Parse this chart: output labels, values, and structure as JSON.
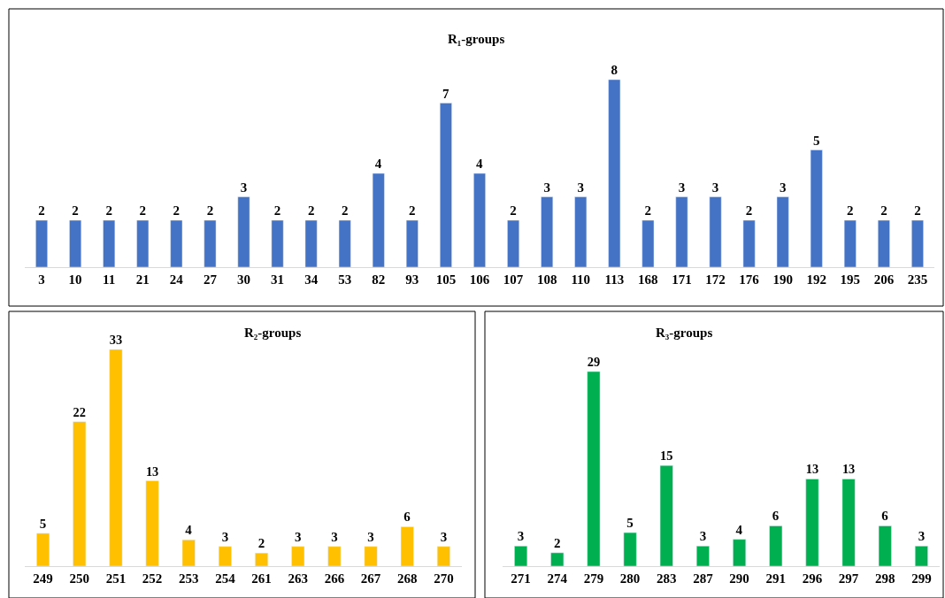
{
  "chart_data": [
    {
      "type": "bar",
      "title": "R₁-groups",
      "categories": [
        "3",
        "10",
        "11",
        "21",
        "24",
        "27",
        "30",
        "31",
        "34",
        "53",
        "82",
        "93",
        "105",
        "106",
        "107",
        "108",
        "110",
        "113",
        "168",
        "171",
        "172",
        "176",
        "190",
        "192",
        "195",
        "206",
        "235"
      ],
      "values": [
        2,
        2,
        2,
        2,
        2,
        2,
        3,
        2,
        2,
        2,
        4,
        2,
        7,
        4,
        2,
        3,
        3,
        8,
        2,
        3,
        3,
        2,
        3,
        5,
        2,
        2,
        2
      ],
      "color": "#4472c4",
      "data_labels": true
    },
    {
      "type": "bar",
      "title": "R₂-groups",
      "categories": [
        "249",
        "250",
        "251",
        "252",
        "253",
        "254",
        "261",
        "263",
        "266",
        "267",
        "268",
        "270"
      ],
      "values": [
        5,
        22,
        33,
        13,
        4,
        3,
        2,
        3,
        3,
        3,
        6,
        3
      ],
      "color": "#ffc000",
      "data_labels": true
    },
    {
      "type": "bar",
      "title": "R₃-groups",
      "categories": [
        "271",
        "274",
        "279",
        "280",
        "283",
        "287",
        "290",
        "291",
        "296",
        "297",
        "298",
        "299"
      ],
      "values": [
        3,
        2,
        29,
        5,
        15,
        3,
        4,
        6,
        13,
        13,
        6,
        3
      ],
      "color": "#00b050",
      "data_labels": true
    }
  ]
}
